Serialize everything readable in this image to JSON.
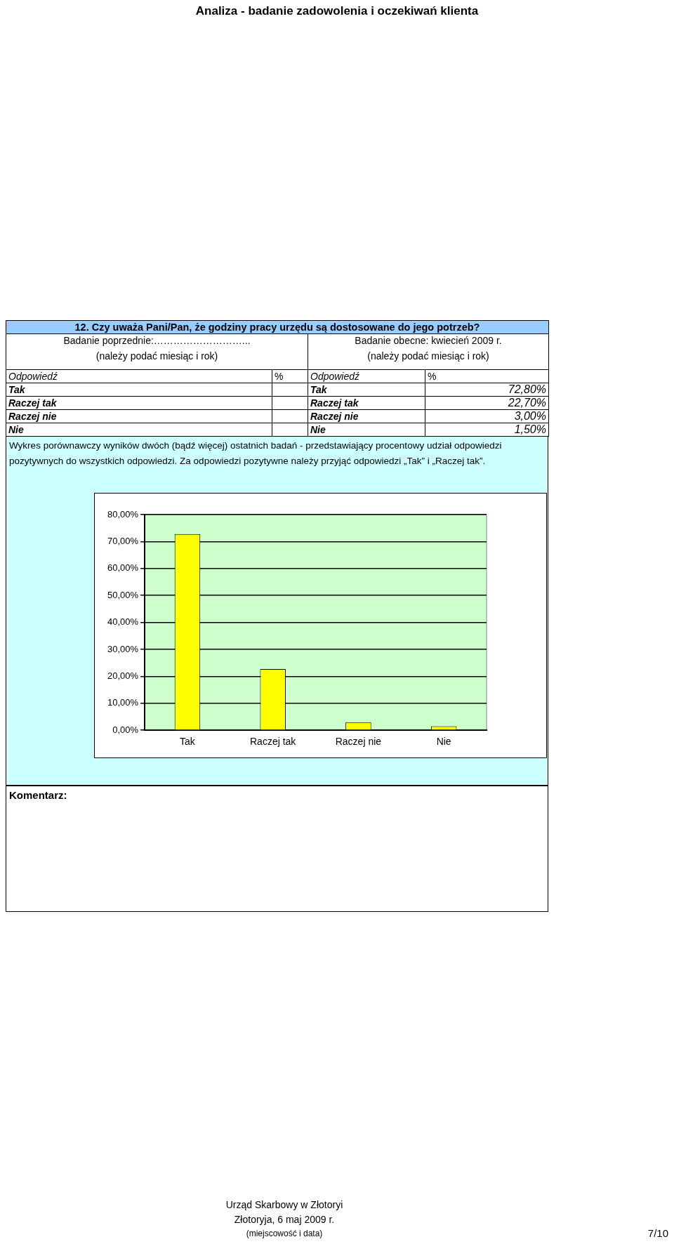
{
  "chart_data": [
    {
      "type": "other",
      "title": "Analiza - badanie zadowolenia i oczekiwań klienta",
      "subtitle": "12. Czy uważa Pani/Pan, że godziny pracy urzędu są dostosowane do jego potrzeb?",
      "annotations": [
        "Badanie poprzednie:………………………...",
        "(należy podać miesiąc i rok)",
        "Badanie obecne:  kwiecień 2009 r.",
        "(należy podać miesiąc i rok)",
        "Odpowiedź",
        "%",
        "Tak",
        "Raczej tak",
        "Raczej nie",
        "Nie",
        "72,80%",
        "22,70%",
        "3,00%",
        "1,50%",
        "Wykres porównawczy wyników dwóch (bądź więcej) ostatnich badań - przedstawiający procentowy udział odpowiedzi pozytywnych do wszystkich odpowiedzi. Za odpowiedzi pozytywne należy przyjąć odpowiedzi „Tak” i „Raczej tak”.",
        "Komentarz:",
        "Urząd Skarbowy w Złotoryi",
        "Złotoryja, 6 maj 2009 r.",
        "(miejscowość i data)",
        "7/10"
      ]
    },
    {
      "type": "bar",
      "categories": [
        "Tak",
        "Raczej tak",
        "Raczej nie",
        "Nie"
      ],
      "values": [
        72.8,
        22.7,
        3.0,
        1.5
      ],
      "color": "#ffff00",
      "ylim": [
        0,
        80
      ],
      "yticks": [
        {
          "value": 0,
          "label": "0,00%"
        },
        {
          "value": 10,
          "label": "10,00%"
        },
        {
          "value": 20,
          "label": "20,00%"
        },
        {
          "value": 30,
          "label": "30,00%"
        },
        {
          "value": 40,
          "label": "40,00%"
        },
        {
          "value": 50,
          "label": "50,00%"
        },
        {
          "value": 60,
          "label": "60,00%"
        },
        {
          "value": 70,
          "label": "70,00%"
        },
        {
          "value": 80,
          "label": "80,00%"
        }
      ],
      "grid": "y",
      "legend": false
    }
  ]
}
